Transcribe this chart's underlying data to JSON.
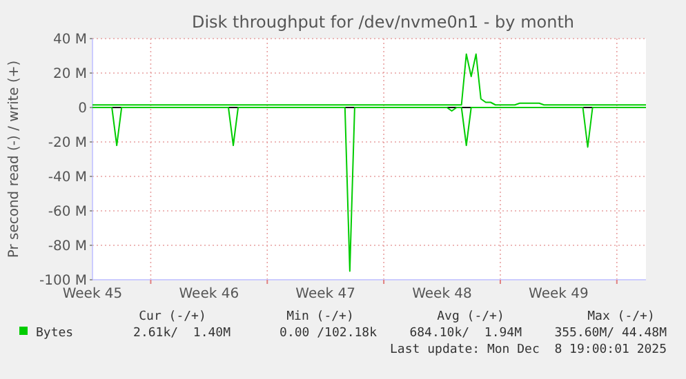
{
  "chart_data": {
    "type": "line",
    "title": "Disk throughput for /dev/nvme0n1 - by month",
    "ylabel": "Pr second read (-) / write (+)",
    "categories": [
      "Week 45",
      null,
      null,
      null,
      null,
      null,
      null,
      null,
      null,
      null,
      null,
      null,
      null,
      null,
      null,
      null,
      null,
      null,
      null,
      null,
      null,
      null,
      null,
      null,
      "Week 46",
      null,
      null,
      null,
      null,
      null,
      null,
      null,
      null,
      null,
      null,
      null,
      null,
      null,
      null,
      null,
      null,
      null,
      null,
      null,
      null,
      null,
      null,
      null,
      "Week 47",
      null,
      null,
      null,
      null,
      null,
      null,
      null,
      null,
      null,
      null,
      null,
      null,
      null,
      null,
      null,
      null,
      null,
      null,
      null,
      null,
      null,
      null,
      null,
      "Week 48",
      null,
      null,
      null,
      null,
      null,
      null,
      null,
      null,
      null,
      null,
      null,
      null,
      null,
      null,
      null,
      null,
      null,
      null,
      null,
      null,
      null,
      null,
      null,
      "Week 49",
      null,
      null,
      null,
      null,
      null,
      null,
      null,
      null,
      null,
      null,
      null,
      null,
      null,
      null,
      null,
      null,
      null,
      null
    ],
    "ylim": [
      -100,
      40
    ],
    "yticks": [
      {
        "value": -100,
        "label": "-100 M"
      },
      {
        "value": -80,
        "label": "-80 M"
      },
      {
        "value": -60,
        "label": "-60 M"
      },
      {
        "value": -40,
        "label": "-40 M"
      },
      {
        "value": -20,
        "label": "-20 M"
      },
      0,
      {
        "value": 20,
        "label": "20 M"
      },
      {
        "value": 40,
        "label": "40 M"
      }
    ],
    "grid": true,
    "legend": "bottom",
    "line_style": "solid",
    "ref_lines": [
      {
        "axis": "y",
        "value": 0,
        "color": "#000000"
      }
    ],
    "series": [
      {
        "name": "Bytes",
        "color": "#00cc00",
        "values": [
          1.5,
          1.5,
          1.5,
          1.5,
          1.5,
          1.5,
          1.5,
          1.5,
          1.5,
          1.5,
          1.5,
          1.5,
          1.5,
          1.5,
          1.5,
          1.5,
          1.5,
          1.5,
          1.5,
          1.5,
          1.5,
          1.5,
          1.5,
          1.5,
          1.5,
          1.5,
          1.5,
          1.5,
          1.5,
          1.5,
          1.5,
          1.5,
          1.5,
          1.5,
          1.5,
          1.5,
          1.5,
          1.5,
          1.5,
          1.5,
          1.5,
          1.5,
          1.5,
          1.5,
          1.5,
          1.5,
          1.5,
          1.5,
          1.5,
          1.5,
          1.5,
          1.5,
          1.5,
          1.5,
          1.5,
          1.5,
          1.5,
          1.5,
          1.5,
          1.5,
          1.5,
          1.5,
          1.5,
          1.5,
          1.5,
          1.5,
          1.5,
          1.5,
          1.5,
          1.5,
          1.5,
          1.5,
          1.5,
          1.5,
          1.5,
          1.5,
          1.5,
          31,
          18,
          31,
          5,
          3,
          3,
          1.5,
          1.5,
          1.5,
          1.5,
          1.5,
          2.5,
          2.5,
          2.5,
          2.5,
          2.5,
          1.5,
          1.5,
          1.5,
          1.5,
          1.5,
          1.5,
          1.5,
          1.5,
          1.5,
          1.5,
          1.5,
          1.5,
          1.5,
          1.5,
          1.5,
          1.5,
          1.5,
          1.5,
          1.5,
          1.5,
          1.5,
          1.5
        ]
      },
      {
        "color": "#00cc00",
        "values": [
          0,
          0,
          0,
          0,
          0,
          -22,
          0,
          0,
          0,
          0,
          0,
          0,
          0,
          0,
          0,
          0,
          0,
          0,
          0,
          0,
          0,
          0,
          0,
          0,
          0,
          0,
          0,
          0,
          0,
          -22,
          0,
          0,
          0,
          0,
          0,
          0,
          0,
          0,
          0,
          0,
          0,
          0,
          0,
          0,
          0,
          0,
          0,
          0,
          0,
          0,
          0,
          0,
          0,
          -95,
          0,
          0,
          0,
          0,
          0,
          0,
          0,
          0,
          0,
          0,
          0,
          0,
          0,
          0,
          0,
          0,
          0,
          0,
          0,
          0,
          -2,
          0,
          0,
          -22,
          0,
          0,
          0,
          0,
          0,
          0,
          0,
          0,
          0,
          0,
          0,
          0,
          0,
          0,
          0,
          0,
          0,
          0,
          0,
          0,
          0,
          0,
          0,
          0,
          -23,
          0,
          0,
          0,
          0,
          0,
          0,
          0,
          0,
          0,
          0,
          0,
          0
        ]
      }
    ],
    "annotations": [
      "Cur (-/+)",
      "Min (-/+)",
      "Avg (-/+)",
      "Max (-/+)",
      "2.61k/  1.40M",
      "0.00 /102.18k",
      "684.10k/  1.94M",
      "355.60M/ 44.48M",
      "Last update: Mon Dec  8 19:00:01 2025"
    ]
  }
}
